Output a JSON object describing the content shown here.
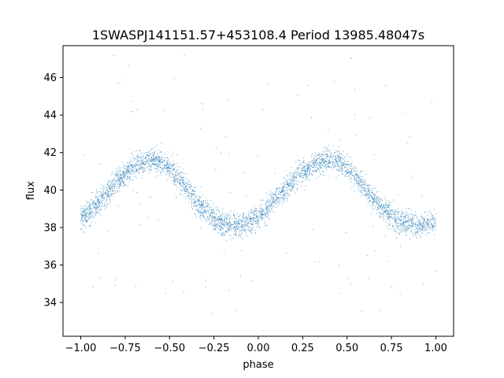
{
  "chart_data": {
    "type": "scatter",
    "title": "1SWASPJ141151.57+453108.4 Period 13985.48047s",
    "xlabel": "phase",
    "ylabel": "flux",
    "xlim": [
      -1.1,
      1.1
    ],
    "ylim": [
      32.2,
      47.7
    ],
    "xticks": [
      -1.0,
      -0.75,
      -0.5,
      -0.25,
      0.0,
      0.25,
      0.5,
      0.75,
      1.0
    ],
    "xtick_labels": [
      "−1.00",
      "−0.75",
      "−0.50",
      "−0.25",
      "0.00",
      "0.25",
      "0.50",
      "0.75",
      "1.00"
    ],
    "yticks": [
      34,
      36,
      38,
      40,
      42,
      44,
      46
    ],
    "ytick_labels": [
      "34",
      "36",
      "38",
      "40",
      "42",
      "44",
      "46"
    ],
    "grid": false,
    "marker_color": "#1f77b4",
    "series": [
      {
        "x": [
          -1.0,
          -0.95,
          -0.9,
          -0.85,
          -0.8,
          -0.75,
          -0.7,
          -0.65,
          -0.6,
          -0.55,
          -0.5,
          -0.45,
          -0.4,
          -0.35,
          -0.3,
          -0.25,
          -0.2,
          -0.15,
          -0.1,
          -0.05,
          0.0,
          0.05,
          0.1,
          0.15,
          0.2,
          0.25,
          0.3,
          0.35,
          0.4,
          0.45,
          0.5,
          0.55,
          0.6,
          0.65,
          0.7,
          0.75,
          0.8,
          0.85,
          0.9,
          0.95,
          1.0
        ],
        "y": [
          38.5,
          38.8,
          39.3,
          39.8,
          40.4,
          40.9,
          41.3,
          41.5,
          41.6,
          41.5,
          41.1,
          40.6,
          40.0,
          39.4,
          38.9,
          38.5,
          38.2,
          38.1,
          38.1,
          38.3,
          38.6,
          39.0,
          39.5,
          40.0,
          40.5,
          41.0,
          41.3,
          41.5,
          41.6,
          41.5,
          41.2,
          40.7,
          40.1,
          39.5,
          39.0,
          38.6,
          38.3,
          38.2,
          38.1,
          38.2,
          38.3
        ]
      }
    ]
  }
}
